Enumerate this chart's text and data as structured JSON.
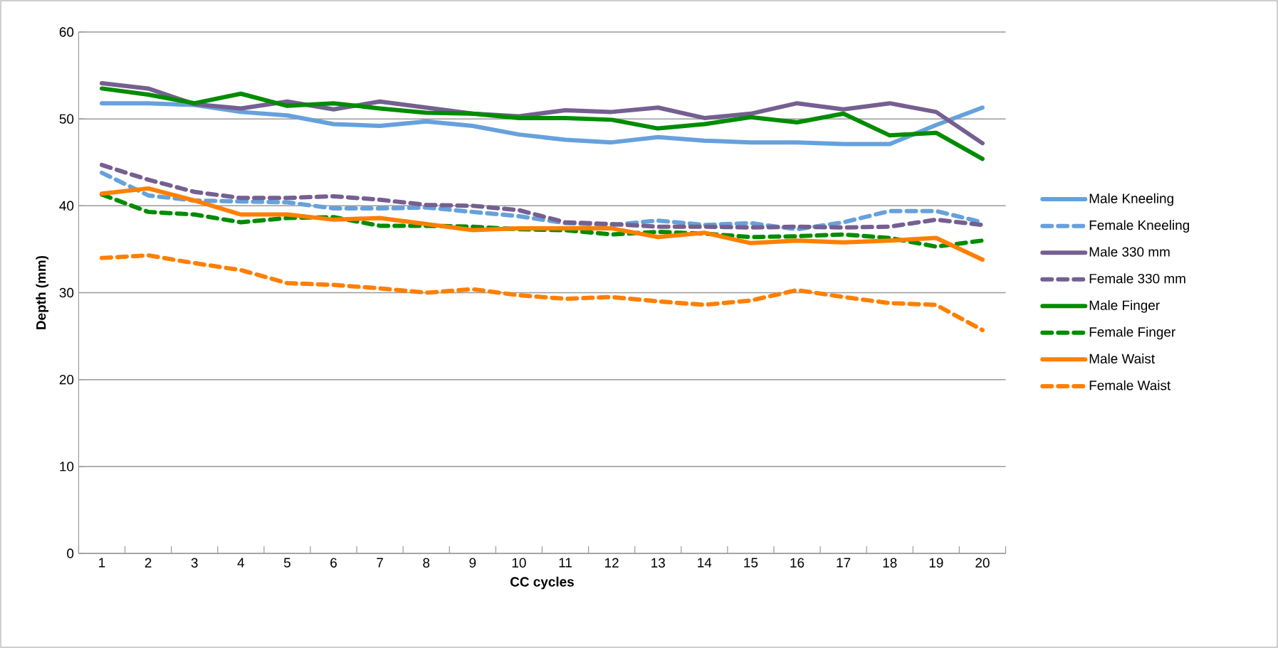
{
  "chart_data": {
    "type": "line",
    "xlabel": "CC cycles",
    "ylabel": "Depth (mm)",
    "categories": [
      "1",
      "2",
      "3",
      "4",
      "5",
      "6",
      "7",
      "8",
      "9",
      "10",
      "11",
      "12",
      "13",
      "14",
      "15",
      "16",
      "17",
      "18",
      "19",
      "20"
    ],
    "ylim": [
      0,
      60
    ],
    "yticks": [
      0,
      10,
      20,
      30,
      40,
      50,
      60
    ],
    "grid": "y",
    "legend": "right",
    "marker": "none",
    "series": [
      {
        "name": "Male Kneeling",
        "color": "#66a1dc",
        "line_style": "solid",
        "values": [
          51.8,
          51.8,
          51.6,
          50.8,
          50.4,
          49.4,
          49.2,
          49.7,
          49.2,
          48.2,
          47.6,
          47.3,
          47.9,
          47.5,
          47.3,
          47.3,
          47.1,
          47.1,
          49.3,
          51.3
        ]
      },
      {
        "name": "Female Kneeling",
        "color": "#66a1dc",
        "line_style": "dashed",
        "values": [
          43.8,
          41.2,
          40.6,
          40.5,
          40.4,
          39.7,
          39.7,
          39.8,
          39.3,
          38.8,
          38.0,
          37.8,
          38.3,
          37.8,
          38.0,
          37.3,
          38.1,
          39.4,
          39.4,
          38.1
        ]
      },
      {
        "name": "Male 330 mm",
        "color": "#755f91",
        "line_style": "solid",
        "values": [
          54.1,
          53.5,
          51.7,
          51.2,
          52.0,
          51.1,
          52.0,
          51.3,
          50.6,
          50.3,
          51.0,
          50.8,
          51.3,
          50.1,
          50.6,
          51.8,
          51.1,
          51.8,
          50.8,
          47.2
        ]
      },
      {
        "name": "Female 330 mm",
        "color": "#755f91",
        "line_style": "dashed",
        "values": [
          44.7,
          43.0,
          41.6,
          40.9,
          40.9,
          41.1,
          40.7,
          40.1,
          40.0,
          39.5,
          38.1,
          37.9,
          37.6,
          37.6,
          37.5,
          37.6,
          37.5,
          37.6,
          38.4,
          37.8
        ]
      },
      {
        "name": "Male Finger",
        "color": "#008c00",
        "line_style": "solid",
        "values": [
          53.5,
          52.8,
          51.8,
          52.9,
          51.5,
          51.8,
          51.2,
          50.7,
          50.6,
          50.1,
          50.1,
          49.9,
          48.9,
          49.4,
          50.2,
          49.6,
          50.6,
          48.1,
          48.4,
          45.4
        ]
      },
      {
        "name": "Female Finger",
        "color": "#008c00",
        "line_style": "dashed",
        "values": [
          41.3,
          39.3,
          39.0,
          38.1,
          38.6,
          38.7,
          37.7,
          37.7,
          37.6,
          37.3,
          37.2,
          36.7,
          37.0,
          36.8,
          36.4,
          36.5,
          36.7,
          36.3,
          35.3,
          36.0
        ]
      },
      {
        "name": "Male Waist",
        "color": "#ff7f00",
        "line_style": "solid",
        "values": [
          41.4,
          42.0,
          40.6,
          39.0,
          39.0,
          38.4,
          38.6,
          37.9,
          37.2,
          37.4,
          37.4,
          37.4,
          36.4,
          36.9,
          35.7,
          36.0,
          35.8,
          36.0,
          36.3,
          33.8
        ]
      },
      {
        "name": "Female Waist",
        "color": "#ff7f00",
        "line_style": "dashed",
        "values": [
          34.0,
          34.3,
          33.4,
          32.6,
          31.1,
          30.9,
          30.5,
          30.0,
          30.4,
          29.7,
          29.3,
          29.5,
          29.0,
          28.6,
          29.1,
          30.3,
          29.5,
          28.8,
          28.6,
          25.7
        ]
      }
    ]
  }
}
